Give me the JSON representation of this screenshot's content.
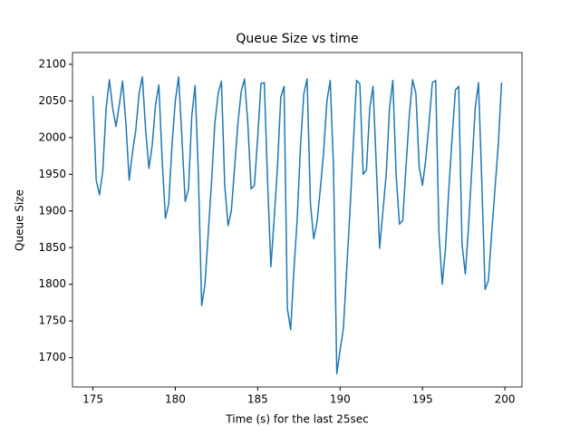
{
  "chart_data": {
    "type": "line",
    "title": "Queue Size vs time",
    "x_label": "Time (s) for the last 25sec",
    "y_label": "Queue Size",
    "color": "#1f77b4",
    "x": [
      175.0,
      175.2,
      175.4,
      175.6,
      175.8,
      176.0,
      176.2,
      176.4,
      176.6,
      176.8,
      177.0,
      177.2,
      177.4,
      177.6,
      177.8,
      178.0,
      178.2,
      178.4,
      178.6,
      178.8,
      179.0,
      179.2,
      179.4,
      179.6,
      179.8,
      180.0,
      180.2,
      180.4,
      180.6,
      180.8,
      181.0,
      181.2,
      181.4,
      181.6,
      181.8,
      182.0,
      182.2,
      182.4,
      182.6,
      182.8,
      183.0,
      183.2,
      183.4,
      183.6,
      183.8,
      184.0,
      184.2,
      184.4,
      184.6,
      184.8,
      185.0,
      185.2,
      185.4,
      185.6,
      185.8,
      186.0,
      186.2,
      186.4,
      186.6,
      186.8,
      187.0,
      187.2,
      187.4,
      187.6,
      187.8,
      188.0,
      188.2,
      188.4,
      188.6,
      188.8,
      189.0,
      189.2,
      189.4,
      189.6,
      189.8,
      190.0,
      190.2,
      190.4,
      190.6,
      190.8,
      191.0,
      191.2,
      191.4,
      191.6,
      191.8,
      192.0,
      192.2,
      192.4,
      192.6,
      192.8,
      193.0,
      193.2,
      193.4,
      193.6,
      193.8,
      194.0,
      194.2,
      194.4,
      194.6,
      194.8,
      195.0,
      195.2,
      195.4,
      195.6,
      195.8,
      196.0,
      196.2,
      196.4,
      196.6,
      196.8,
      197.0,
      197.2,
      197.4,
      197.6,
      197.8,
      198.0,
      198.2,
      198.4,
      198.6,
      198.8,
      199.0,
      199.2,
      199.4,
      199.6,
      199.8
    ],
    "values": [
      2057,
      1942,
      1922,
      1955,
      2040,
      2079,
      2040,
      2015,
      2045,
      2077,
      2020,
      1942,
      1980,
      2010,
      2060,
      2083,
      2010,
      1958,
      1990,
      2045,
      2072,
      1970,
      1890,
      1910,
      1990,
      2050,
      2083,
      2000,
      1913,
      1930,
      2030,
      2071,
      1950,
      1771,
      1800,
      1870,
      1940,
      2020,
      2060,
      2077,
      1935,
      1880,
      1900,
      1960,
      2020,
      2063,
      2080,
      2020,
      1930,
      1935,
      2000,
      2074,
      2075,
      1940,
      1824,
      1890,
      1960,
      2055,
      2070,
      1767,
      1738,
      1820,
      1890,
      1990,
      2060,
      2080,
      1910,
      1862,
      1885,
      1930,
      1980,
      2050,
      2078,
      1960,
      1678,
      1710,
      1740,
      1820,
      1900,
      1990,
      2078,
      2073,
      1950,
      1956,
      2040,
      2070,
      1960,
      1849,
      1900,
      1950,
      2040,
      2078,
      1950,
      1882,
      1887,
      1960,
      2030,
      2079,
      2060,
      1960,
      1935,
      1970,
      2020,
      2075,
      2078,
      1870,
      1800,
      1850,
      1930,
      2000,
      2065,
      2070,
      1855,
      1814,
      1880,
      1960,
      2040,
      2075,
      1940,
      1793,
      1805,
      1870,
      1930,
      1990,
      2075
    ],
    "xlim": [
      173.76,
      201.04
    ],
    "ylim": [
      1660,
      2116
    ],
    "xticks": [
      175,
      180,
      185,
      190,
      195,
      200
    ],
    "yticks": [
      1700,
      1750,
      1800,
      1850,
      1900,
      1950,
      2000,
      2050,
      2100
    ]
  }
}
